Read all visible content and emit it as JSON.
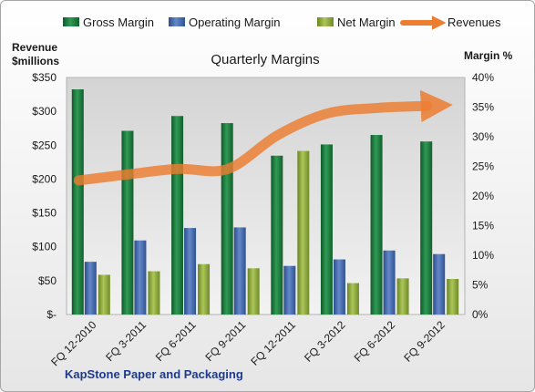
{
  "chart_data": {
    "type": "bar",
    "title": "Quarterly Margins",
    "company": "KapStone Paper and Packaging",
    "categories": [
      "FQ 12-2010",
      "FQ 3-2011",
      "FQ 6-2011",
      "FQ 9-2011",
      "FQ 12-2011",
      "FQ 3-2012",
      "FQ 6-2012",
      "FQ 9-2012"
    ],
    "series": [
      {
        "name": "Gross Margin",
        "type": "bar",
        "axis": "right",
        "color": "#1e7a3e",
        "values": [
          38.0,
          31.0,
          33.5,
          32.3,
          26.8,
          28.7,
          30.3,
          29.2
        ]
      },
      {
        "name": "Operating Margin",
        "type": "bar",
        "axis": "right",
        "color": "#3f63a8",
        "values": [
          8.9,
          12.5,
          14.6,
          14.7,
          8.2,
          9.3,
          10.8,
          10.2
        ]
      },
      {
        "name": "Net Margin",
        "type": "bar",
        "axis": "right",
        "color": "#8aa636",
        "values": [
          6.7,
          7.3,
          8.5,
          7.8,
          27.6,
          5.3,
          6.1,
          6.0
        ]
      },
      {
        "name": "Revenues",
        "type": "line",
        "axis": "left",
        "color": "#ed7d31",
        "values": [
          198,
          207,
          215,
          215,
          265,
          297,
          305,
          308
        ]
      }
    ],
    "left_axis": {
      "label": "Revenue $millions",
      "min": 0,
      "max": 350,
      "ticks": [
        0,
        50,
        100,
        150,
        200,
        250,
        300,
        350
      ],
      "tick_labels": [
        "$-",
        "$50",
        "$100",
        "$150",
        "$200",
        "$250",
        "$300",
        "$350"
      ]
    },
    "right_axis": {
      "label": "Margin %",
      "min": 0,
      "max": 40,
      "ticks": [
        0,
        5,
        10,
        15,
        20,
        25,
        30,
        35,
        40
      ],
      "tick_labels": [
        "0%",
        "5%",
        "10%",
        "15%",
        "20%",
        "25%",
        "30%",
        "35%",
        "40%"
      ]
    },
    "legend": "top",
    "grid": false
  }
}
